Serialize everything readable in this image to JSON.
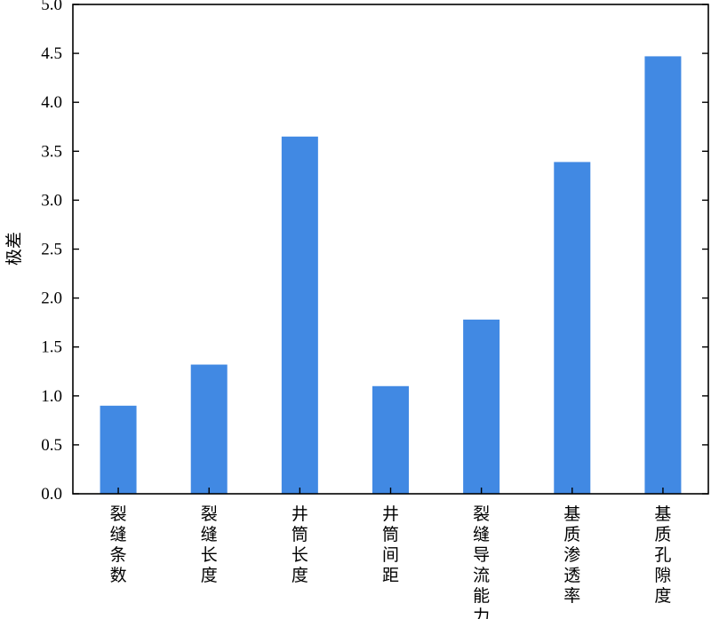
{
  "chart_data": {
    "type": "bar",
    "title": "",
    "xlabel": "",
    "ylabel": "极差",
    "ylim": [
      0,
      5.0
    ],
    "yticks": [
      "0.0",
      "0.5",
      "1.0",
      "1.5",
      "2.0",
      "2.5",
      "3.0",
      "3.5",
      "4.0",
      "4.5",
      "5.0"
    ],
    "categories": [
      "裂缝条数",
      "裂缝长度",
      "井筒长度",
      "井筒间距",
      "裂缝导流能力",
      "基质渗透率",
      "基质孔隙度"
    ],
    "values": [
      0.9,
      1.32,
      3.65,
      1.1,
      1.78,
      3.39,
      4.47
    ],
    "bar_color": "#4189e3",
    "grid": false,
    "legend": "none"
  }
}
